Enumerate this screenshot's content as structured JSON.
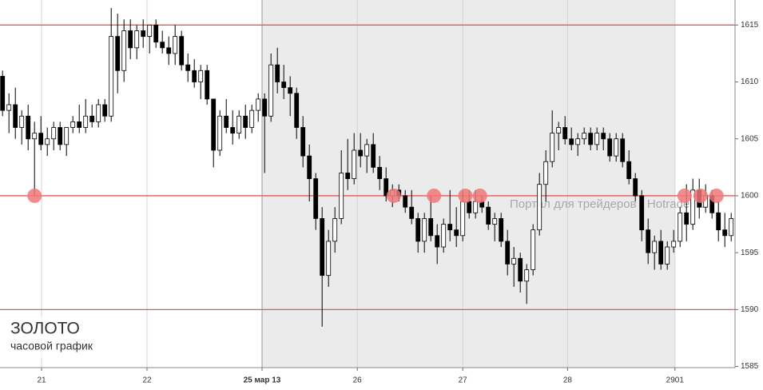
{
  "chart_data": {
    "type": "candlestick",
    "title": "ЗОЛОТО",
    "subtitle": "часовой график",
    "watermark": "Портал для трейдеров - Hotrader.ru",
    "open": [
      1610.5,
      1607.5,
      1608,
      1606,
      1607,
      1605,
      1605.5,
      1604.5,
      1605,
      1606,
      1604.5,
      1606,
      1606.5,
      1606,
      1607,
      1606.5,
      1608,
      1607,
      1614,
      1611,
      1614.5,
      1613,
      1614.5,
      1614,
      1615,
      1613.5,
      1613,
      1612.5,
      1614,
      1611.5,
      1611,
      1610,
      1611,
      1608.5,
      1604,
      1607,
      1606,
      1605.5,
      1607,
      1606,
      1607.5,
      1608.5,
      1607,
      1611.5,
      1610,
      1609.5,
      1609,
      1606,
      1603.5,
      1601.5,
      1598,
      1593,
      1596,
      1598,
      1602,
      1601.5,
      1604,
      1603.5,
      1604.5,
      1602.5,
      1601.5,
      1600,
      1600.5,
      1600,
      1599,
      1598,
      1596,
      1598,
      1596.5,
      1595.5,
      1597.5,
      1597,
      1596.5,
      1599.5,
      1598.5,
      1599.5,
      1599,
      1597.5,
      1598,
      1596,
      1594,
      1594.5,
      1592.5,
      1593.5,
      1597,
      1601,
      1603,
      1605.5,
      1606,
      1605,
      1604.5,
      1605,
      1605.5,
      1604.5,
      1605.5,
      1605,
      1603.5,
      1605,
      1603,
      1601.5,
      1600,
      1597,
      1595,
      1596,
      1594,
      1595.5,
      1596,
      1598.5,
      1597.5,
      1600.5,
      1599,
      1600,
      1598.5,
      1597,
      1596.5
    ],
    "high": [
      1611,
      1609,
      1609.5,
      1607.5,
      1608,
      1606.5,
      1607,
      1606,
      1606.5,
      1606.5,
      1606,
      1607,
      1608,
      1608.5,
      1608,
      1608.5,
      1608.5,
      1616.5,
      1616,
      1615.5,
      1615.5,
      1615,
      1615.5,
      1615,
      1615.5,
      1614.5,
      1614,
      1615,
      1614.5,
      1612.5,
      1612,
      1611.5,
      1611.5,
      1608.5,
      1607.5,
      1608.5,
      1607.5,
      1607.5,
      1608,
      1608,
      1609,
      1609,
      1612.5,
      1613,
      1611.5,
      1610.5,
      1609.5,
      1607,
      1604.5,
      1602,
      1599,
      1597,
      1599,
      1604,
      1605,
      1605.5,
      1605.5,
      1605,
      1605.5,
      1603.5,
      1602.5,
      1601,
      1601,
      1600.5,
      1600.5,
      1598.5,
      1598.5,
      1600,
      1597.5,
      1598,
      1600.5,
      1599,
      1600.5,
      1600.5,
      1600.5,
      1600,
      1599.5,
      1598.5,
      1598.5,
      1597,
      1595.5,
      1595,
      1594,
      1597.5,
      1602,
      1604,
      1607.5,
      1606.5,
      1607,
      1606,
      1605.5,
      1606,
      1606,
      1606,
      1606,
      1605.5,
      1605.5,
      1605.5,
      1604,
      1602,
      1600.5,
      1598,
      1596.5,
      1597,
      1596,
      1597,
      1599,
      1601,
      1601.5,
      1601.5,
      1601,
      1600.5,
      1599.5,
      1598.5,
      1598.5
    ],
    "low": [
      1607,
      1605.5,
      1605,
      1604.5,
      1604,
      1600,
      1604,
      1603.5,
      1604,
      1604,
      1603.5,
      1605.5,
      1605.5,
      1605.5,
      1606,
      1606,
      1606.5,
      1606.5,
      1609,
      1610,
      1612,
      1612,
      1613,
      1612.5,
      1613,
      1612.5,
      1611.5,
      1611.5,
      1611,
      1610,
      1609.5,
      1608.5,
      1608,
      1602.5,
      1603.5,
      1605.5,
      1604.5,
      1605,
      1605,
      1605.5,
      1606.5,
      1602,
      1606.5,
      1609,
      1608.5,
      1607,
      1605,
      1602.5,
      1599.5,
      1597,
      1588.5,
      1592,
      1595,
      1597.5,
      1600.5,
      1601,
      1602.5,
      1602,
      1602,
      1600.5,
      1599.5,
      1599,
      1599.5,
      1598.5,
      1597.5,
      1595,
      1595,
      1596,
      1594,
      1595,
      1596,
      1595.5,
      1596,
      1598,
      1598,
      1598.5,
      1597,
      1596,
      1595.5,
      1593,
      1592,
      1591.5,
      1590.5,
      1593,
      1596.5,
      1599.5,
      1602.5,
      1604,
      1604.5,
      1604,
      1603.5,
      1604.5,
      1604,
      1604,
      1604,
      1603,
      1603,
      1602.5,
      1601,
      1599.5,
      1596,
      1594,
      1593.5,
      1593.5,
      1593.5,
      1595,
      1595.5,
      1596,
      1597,
      1598,
      1598.5,
      1598,
      1596,
      1595.5,
      1596
    ],
    "close": [
      1607.5,
      1608,
      1606,
      1607,
      1605,
      1605.5,
      1604.5,
      1605,
      1606,
      1604.5,
      1606,
      1606.5,
      1606,
      1607,
      1606.5,
      1608,
      1607,
      1614,
      1611,
      1614.5,
      1613,
      1614.5,
      1614,
      1615,
      1613.5,
      1613,
      1612.5,
      1614,
      1611.5,
      1611,
      1610,
      1611,
      1608.5,
      1604,
      1607,
      1606,
      1605.5,
      1607,
      1606,
      1607.5,
      1608.5,
      1607,
      1611.5,
      1610,
      1609.5,
      1609,
      1606,
      1603.5,
      1601.5,
      1598,
      1593,
      1596,
      1598,
      1602,
      1601.5,
      1604,
      1603.5,
      1604.5,
      1602.5,
      1601.5,
      1600,
      1600.5,
      1600,
      1599,
      1598,
      1596,
      1598,
      1596.5,
      1595.5,
      1597.5,
      1597,
      1596.5,
      1599.5,
      1598.5,
      1599.5,
      1599,
      1597.5,
      1598,
      1596,
      1594,
      1594.5,
      1592.5,
      1593.5,
      1597,
      1601,
      1603,
      1605.5,
      1606,
      1605,
      1604.5,
      1605,
      1605.5,
      1604.5,
      1605.5,
      1605,
      1603.5,
      1605,
      1603,
      1601.5,
      1600,
      1597,
      1595,
      1596,
      1594,
      1595.5,
      1596,
      1598.5,
      1597.5,
      1600.5,
      1599,
      1600,
      1598.5,
      1597,
      1596.5,
      1598
    ],
    "up_color": "#ffffff",
    "down_color": "#000000",
    "xlim": [
      -0.4,
      114.6
    ],
    "xticks": [
      {
        "value": 6.1,
        "label": "21"
      },
      {
        "value": 22.6,
        "label": "22"
      },
      {
        "value": 40.6,
        "label": "25 мар 13"
      },
      {
        "value": 55.5,
        "label": "26"
      },
      {
        "value": 72,
        "label": "27"
      },
      {
        "value": 88.4,
        "label": "28"
      },
      {
        "value": 105.2,
        "label": "2901"
      }
    ],
    "ylim": [
      1584.9,
      1617.2
    ],
    "yticks": [
      1585,
      1590,
      1595,
      1600,
      1605,
      1610,
      1615
    ],
    "shaded_range": [
      40.6,
      105.2
    ],
    "shade_color": "#ebebeb",
    "hlines": [
      1615,
      1600,
      1590
    ],
    "hline_color": "#e05a5a",
    "markers": [
      {
        "x": 5,
        "y": 1600
      },
      {
        "x": 61.2,
        "y": 1600
      },
      {
        "x": 67.5,
        "y": 1600
      },
      {
        "x": 72.4,
        "y": 1600
      },
      {
        "x": 74.7,
        "y": 1600
      },
      {
        "x": 106.7,
        "y": 1600
      },
      {
        "x": 109.2,
        "y": 1600
      },
      {
        "x": 111.7,
        "y": 1600
      }
    ],
    "marker_color": "#f07878"
  }
}
